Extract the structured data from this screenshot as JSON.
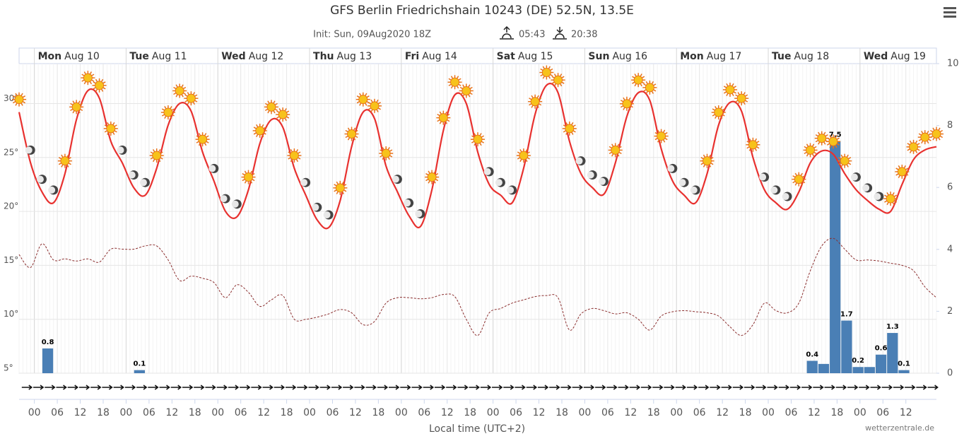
{
  "chart_data": {
    "type": "meteogram",
    "title": "GFS Berlin Friedrichshain 10243 (DE) 52.5N, 13.5E",
    "init": "Init: Sun, 09Aug2020 18Z",
    "sunrise": "05:43",
    "sunset": "20:38",
    "x_label": "Local time (UTC+2)",
    "credit": "wetterzentrale.de",
    "days": [
      {
        "weekday": "Mon",
        "date": "Aug 10"
      },
      {
        "weekday": "Tue",
        "date": "Aug 11"
      },
      {
        "weekday": "Wed",
        "date": "Aug 12"
      },
      {
        "weekday": "Thu",
        "date": "Aug 13"
      },
      {
        "weekday": "Fri",
        "date": "Aug 14"
      },
      {
        "weekday": "Sat",
        "date": "Aug 15"
      },
      {
        "weekday": "Sun",
        "date": "Aug 16"
      },
      {
        "weekday": "Mon",
        "date": "Aug 17"
      },
      {
        "weekday": "Tue",
        "date": "Aug 18"
      },
      {
        "weekday": "Wed",
        "date": "Aug 19"
      }
    ],
    "xlim": [
      -4,
      236
    ],
    "xticks": [
      {
        "value": 0,
        "label": "00"
      },
      {
        "value": 6,
        "label": "06"
      },
      {
        "value": 12,
        "label": "12"
      },
      {
        "value": 18,
        "label": "18"
      },
      {
        "value": 24,
        "label": "00"
      },
      {
        "value": 30,
        "label": "06"
      },
      {
        "value": 36,
        "label": "12"
      },
      {
        "value": 42,
        "label": "18"
      },
      {
        "value": 48,
        "label": "00"
      },
      {
        "value": 54,
        "label": "06"
      },
      {
        "value": 60,
        "label": "12"
      },
      {
        "value": 66,
        "label": "18"
      },
      {
        "value": 72,
        "label": "00"
      },
      {
        "value": 78,
        "label": "06"
      },
      {
        "value": 84,
        "label": "12"
      },
      {
        "value": 90,
        "label": "18"
      },
      {
        "value": 96,
        "label": "00"
      },
      {
        "value": 102,
        "label": "06"
      },
      {
        "value": 108,
        "label": "12"
      },
      {
        "value": 114,
        "label": "18"
      },
      {
        "value": 120,
        "label": "00"
      },
      {
        "value": 126,
        "label": "06"
      },
      {
        "value": 132,
        "label": "12"
      },
      {
        "value": 138,
        "label": "18"
      },
      {
        "value": 144,
        "label": "00"
      },
      {
        "value": 150,
        "label": "06"
      },
      {
        "value": 156,
        "label": "12"
      },
      {
        "value": 162,
        "label": "18"
      },
      {
        "value": 168,
        "label": "00"
      },
      {
        "value": 174,
        "label": "06"
      },
      {
        "value": 180,
        "label": "12"
      },
      {
        "value": 186,
        "label": "18"
      },
      {
        "value": 192,
        "label": "00"
      },
      {
        "value": 198,
        "label": "06"
      },
      {
        "value": 204,
        "label": "12"
      },
      {
        "value": 210,
        "label": "18"
      },
      {
        "value": 216,
        "label": "00"
      },
      {
        "value": 222,
        "label": "06"
      },
      {
        "value": 228,
        "label": "12"
      }
    ],
    "ylim": [
      5,
      33.7
    ],
    "yticks": [
      {
        "value": 5,
        "label": "5°"
      },
      {
        "value": 10,
        "label": "10°"
      },
      {
        "value": 15,
        "label": "15°"
      },
      {
        "value": 20,
        "label": "20°"
      },
      {
        "value": 25,
        "label": "25°"
      },
      {
        "value": 30,
        "label": "30°"
      }
    ],
    "y2lim": [
      0,
      10
    ],
    "y2ticks": [
      0,
      2,
      4,
      6,
      8,
      10
    ],
    "grid": true,
    "x": [
      -4,
      -1,
      2,
      5,
      8,
      11,
      14,
      17,
      20,
      23,
      26,
      29,
      32,
      35,
      38,
      41,
      44,
      47,
      50,
      53,
      56,
      59,
      62,
      65,
      68,
      71,
      74,
      77,
      80,
      83,
      86,
      89,
      92,
      95,
      98,
      101,
      104,
      107,
      110,
      113,
      116,
      119,
      122,
      125,
      128,
      131,
      134,
      137,
      140,
      143,
      146,
      149,
      152,
      155,
      158,
      161,
      164,
      167,
      170,
      173,
      176,
      179,
      182,
      185,
      188,
      191,
      194,
      197,
      200,
      203,
      206,
      209,
      212,
      215,
      218,
      221,
      224,
      227,
      230,
      233,
      236
    ],
    "series": [
      {
        "color": "#e8312f",
        "line_style": "solid",
        "values": [
          29.2,
          24.5,
          21.8,
          20.8,
          23.5,
          28.5,
          31.2,
          30.5,
          26.5,
          24.5,
          22.2,
          21.5,
          24.0,
          28.0,
          30.0,
          29.3,
          25.5,
          22.8,
          20.0,
          19.5,
          22.0,
          26.3,
          28.5,
          27.8,
          24.0,
          21.5,
          19.2,
          18.5,
          21.0,
          26.0,
          29.2,
          28.6,
          24.2,
          21.8,
          19.6,
          18.6,
          22.0,
          27.5,
          30.8,
          30.0,
          25.5,
          22.5,
          21.5,
          20.8,
          24.0,
          29.0,
          31.7,
          31.0,
          26.5,
          23.5,
          22.2,
          21.6,
          24.5,
          28.8,
          31.0,
          30.3,
          25.8,
          22.8,
          21.5,
          20.8,
          23.5,
          28.0,
          30.1,
          29.3,
          25.0,
          22.0,
          20.8,
          20.2,
          21.8,
          24.5,
          25.6,
          25.3,
          23.5,
          22.0,
          21.0,
          20.2,
          20.0,
          22.5,
          24.8,
          25.7,
          26.0
        ]
      },
      {
        "color": "#8b2e2e",
        "line_style": "dashed",
        "values": [
          16.0,
          14.8,
          17.0,
          15.5,
          15.6,
          15.4,
          15.6,
          15.3,
          16.5,
          16.5,
          16.5,
          16.8,
          16.8,
          15.5,
          13.6,
          14.0,
          13.8,
          13.4,
          12.0,
          13.2,
          12.5,
          11.2,
          11.8,
          12.2,
          10.0,
          10.0,
          10.2,
          10.5,
          10.9,
          10.6,
          9.5,
          9.8,
          11.5,
          12.0,
          12.0,
          11.9,
          12.0,
          12.3,
          12.1,
          10.0,
          8.5,
          10.6,
          11.0,
          11.5,
          11.8,
          12.1,
          12.2,
          12.0,
          9.0,
          10.5,
          11.0,
          10.8,
          10.5,
          10.6,
          10.0,
          9.0,
          10.3,
          10.7,
          10.8,
          10.7,
          10.6,
          10.3,
          9.3,
          8.5,
          9.5,
          11.5,
          10.8,
          10.6,
          11.5,
          14.5,
          16.8,
          17.5,
          16.5,
          15.5,
          15.5,
          15.4,
          15.2,
          15.0,
          14.5,
          13.0,
          12.0
        ]
      }
    ],
    "precipitation": {
      "color": "#4a7fb5",
      "axis": "y2",
      "x": [
        3.5,
        27.5,
        203.5,
        206.5,
        209.5,
        212.5,
        215.5,
        218.5,
        221.5,
        224.5,
        227.5
      ],
      "values": [
        0.8,
        0.1,
        0.4,
        0.3,
        7.5,
        1.7,
        0.2,
        0.2,
        0.6,
        1.3,
        0.1
      ],
      "value_labels": [
        "0.8",
        "0.1",
        "0.4",
        null,
        "7.5",
        "1.7",
        "0.2",
        null,
        "0.6",
        "1.3",
        "0.1"
      ]
    }
  }
}
